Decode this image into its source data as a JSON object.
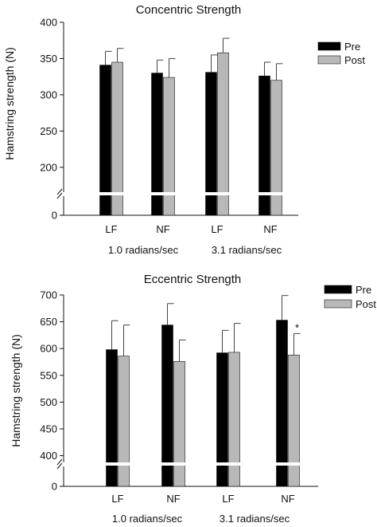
{
  "chart_data": [
    {
      "type": "bar",
      "title": "Concentric Strength",
      "ylabel": "Hamstring strength (N)",
      "ylim": [
        180,
        400
      ],
      "y_ticks": [
        "400",
        "350",
        "300",
        "250",
        "200",
        "0"
      ],
      "y_break": true,
      "categories": [
        "LF",
        "NF",
        "LF",
        "NF"
      ],
      "group_labels": [
        "1.0 radians/sec",
        "3.1 radians/sec"
      ],
      "legend_position": "top-right",
      "series": [
        {
          "name": "Pre",
          "color": "#000000",
          "values": [
            341,
            330,
            331,
            326
          ],
          "errors": [
            19,
            18,
            24,
            19
          ]
        },
        {
          "name": "Post",
          "color": "#b8b8b8",
          "values": [
            345,
            324,
            358,
            320
          ],
          "errors": [
            19,
            26,
            20,
            23
          ]
        }
      ],
      "annotations": []
    },
    {
      "type": "bar",
      "title": "Eccentric Strength",
      "ylabel": "Hamstring strength (N)",
      "ylim": [
        380,
        700
      ],
      "y_ticks": [
        "700",
        "650",
        "600",
        "550",
        "500",
        "450",
        "400",
        "0"
      ],
      "y_break": true,
      "categories": [
        "LF",
        "NF",
        "LF",
        "NF"
      ],
      "group_labels": [
        "1.0 radians/sec",
        "3.1 radians/sec"
      ],
      "legend_position": "top-right",
      "series": [
        {
          "name": "Pre",
          "color": "#000000",
          "values": [
            598,
            644,
            592,
            653
          ],
          "errors": [
            54,
            40,
            42,
            46
          ]
        },
        {
          "name": "Post",
          "color": "#b8b8b8",
          "values": [
            586,
            576,
            593,
            588
          ],
          "errors": [
            58,
            40,
            54,
            40
          ]
        }
      ],
      "annotations": [
        {
          "text": "*",
          "category_index": 3,
          "series": "Post"
        }
      ]
    }
  ]
}
